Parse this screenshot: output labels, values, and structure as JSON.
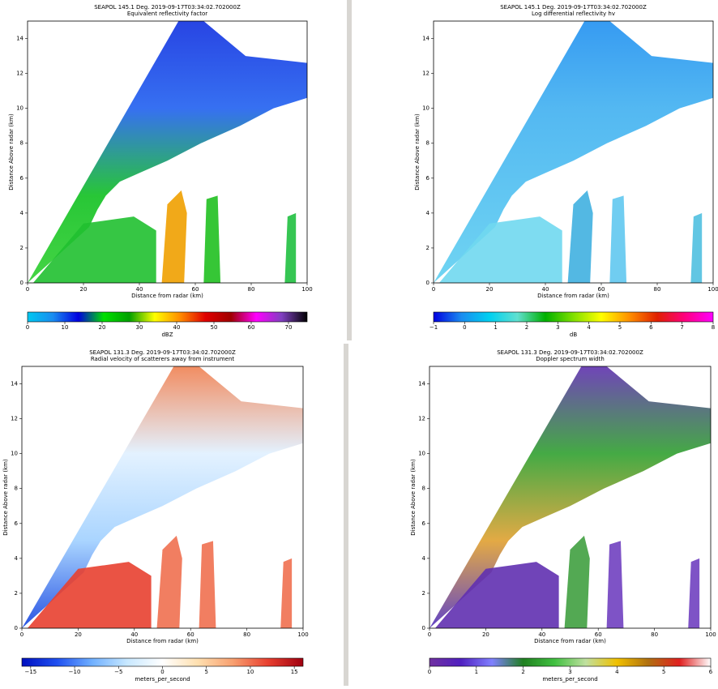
{
  "chart_data": [
    {
      "type": "rhi",
      "title": "SEAPOL 145.1 Deg. 2019-09-17T03:34:02.702000Z",
      "subtitle": "Equivalent reflectivity factor",
      "x_label": "Distance from radar (km)",
      "y_label": "Distance Above radar  (km)",
      "xlim": [
        0,
        100
      ],
      "xticks": [
        0,
        20,
        40,
        60,
        80,
        100
      ],
      "ylim": [
        0,
        15
      ],
      "yticks": [
        0,
        2,
        4,
        6,
        8,
        10,
        12,
        14
      ],
      "colorbar": {
        "label": "dBZ",
        "lim": [
          0,
          75
        ],
        "ticks": [
          0,
          10,
          20,
          30,
          40,
          50,
          60,
          70
        ],
        "colors": [
          "#00c8f0",
          "#1a8cf0",
          "#0000e0",
          "#00e000",
          "#00a000",
          "#ffff00",
          "#ff8c00",
          "#e00000",
          "#a00000",
          "#ff00ff",
          "#8040c0",
          "#000000"
        ]
      }
    },
    {
      "type": "rhi",
      "title": "SEAPOL 145.1 Deg. 2019-09-17T03:34:02.702000Z",
      "subtitle": "Log differential reflectivity hv",
      "x_label": "Distance from radar (km)",
      "y_label": "Distance Above radar  (km)",
      "xlim": [
        0,
        100
      ],
      "xticks": [
        0,
        20,
        40,
        60,
        80,
        100
      ],
      "ylim": [
        0,
        15
      ],
      "yticks": [
        0,
        2,
        4,
        6,
        8,
        10,
        12,
        14
      ],
      "colorbar": {
        "label": "dB",
        "lim": [
          -1,
          8
        ],
        "ticks": [
          {
            "value": -1,
            "label": "−1"
          },
          0,
          1,
          2,
          3,
          4,
          5,
          6,
          7,
          8
        ],
        "colors": [
          "#0000e0",
          "#1a8cf0",
          "#00d0f0",
          "#60e0d0",
          "#00b000",
          "#80e000",
          "#ffff00",
          "#ff9000",
          "#e02000",
          "#ff0080",
          "#ff00ff"
        ]
      }
    },
    {
      "type": "rhi",
      "title": "SEAPOL 131.3 Deg. 2019-09-17T03:34:02.702000Z",
      "subtitle": "Radial velocity of scatterers away from instrument",
      "x_label": "Distance from radar (km)",
      "y_label": "Distance Above radar  (km)",
      "xlim": [
        0,
        100
      ],
      "xticks": [
        0,
        20,
        40,
        60,
        80,
        100
      ],
      "ylim": [
        0,
        15
      ],
      "yticks": [
        0,
        2,
        4,
        6,
        8,
        10,
        12,
        14
      ],
      "colorbar": {
        "label": "meters_per_second",
        "lim": [
          -16,
          16
        ],
        "ticks": [
          {
            "value": -15,
            "label": "−15"
          },
          {
            "value": -10,
            "label": "−10"
          },
          {
            "value": -5,
            "label": "−5"
          },
          0,
          5,
          10,
          15
        ],
        "colors": [
          "#0010c0",
          "#2050f0",
          "#70b0ff",
          "#c8e8ff",
          "#ffffff",
          "#ffe0b0",
          "#f8a070",
          "#e84030",
          "#a00010"
        ]
      }
    },
    {
      "type": "rhi",
      "title": "SEAPOL 131.3 Deg. 2019-09-17T03:34:02.702000Z",
      "subtitle": "Doppler spectrum width",
      "x_label": "Distance from radar (km)",
      "y_label": "Distance Above radar  (km)",
      "xlim": [
        0,
        100
      ],
      "xticks": [
        0,
        20,
        40,
        60,
        80,
        100
      ],
      "ylim": [
        0,
        15
      ],
      "yticks": [
        0,
        2,
        4,
        6,
        8,
        10,
        12,
        14
      ],
      "colorbar": {
        "label": "meters_per_second",
        "lim": [
          0,
          6
        ],
        "ticks": [
          0,
          1,
          2,
          3,
          4,
          5,
          6
        ],
        "colors": [
          "#7030a0",
          "#5020c0",
          "#8080ff",
          "#208020",
          "#40c040",
          "#c0e0a0",
          "#f0c000",
          "#b07010",
          "#e02020",
          "#ffffff"
        ]
      }
    }
  ]
}
